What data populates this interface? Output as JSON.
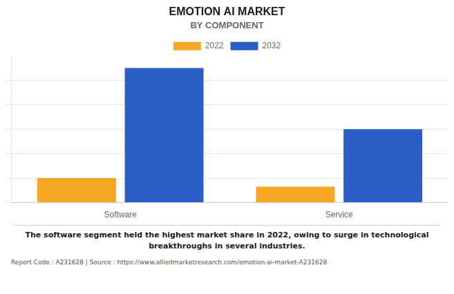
{
  "chart_data": {
    "type": "bar",
    "title": "EMOTION AI MARKET",
    "subtitle": "BY COMPONENT",
    "categories": [
      "Software",
      "Service"
    ],
    "series": [
      {
        "name": "2022",
        "color": "#F5A623",
        "values": [
          1.0,
          0.65
        ]
      },
      {
        "name": "2032",
        "color": "#2B5FC7",
        "values": [
          5.5,
          3.0
        ]
      }
    ],
    "ylim": [
      0,
      5.94
    ],
    "yticks": [
      0,
      1,
      2,
      3,
      4,
      5
    ],
    "grid": true,
    "legend": "top",
    "tick_labels": "x",
    "annotations": [
      "The software segment held the highest market share in 2022, owing to surge in technological",
      "breakthroughs in several industries."
    ],
    "footer": "Report Code : A231628  |  Source : https://www.alliedmarketresearch.com/emotion-ai-market-A231628"
  }
}
